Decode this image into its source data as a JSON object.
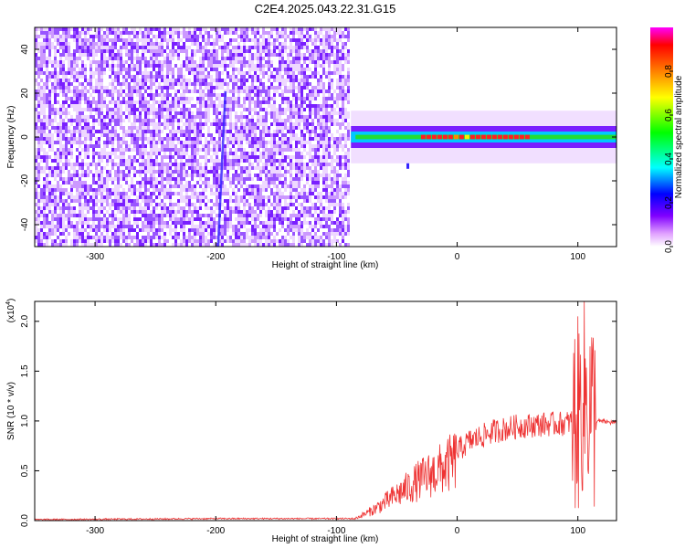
{
  "title": "C2E4.2025.043.22.31.G15",
  "chart_data": [
    {
      "type": "heatmap",
      "xlabel": "Height of straight line (km)",
      "ylabel": "Frequency (Hz)",
      "xlim": [
        -350,
        132
      ],
      "ylim": [
        -50,
        50
      ],
      "xticks": [
        -300,
        -200,
        -100,
        0,
        100
      ],
      "yticks": [
        -40,
        -20,
        0,
        20,
        40
      ],
      "noise_region_x": [
        -350,
        -88
      ],
      "signal_band": {
        "x_range": [
          -88,
          132
        ],
        "center_freq_hz": 0,
        "half_width_hz": [
          3,
          4
        ],
        "peak_amplitude_x_range": [
          -30,
          60
        ]
      },
      "colorbar": {
        "label": "Normalized spectral amplitude",
        "range": [
          0.0,
          1.0
        ],
        "ticks": [
          0.0,
          0.2,
          0.4,
          0.6,
          0.8
        ],
        "colors": [
          "#ffffff",
          "#e0a0ff",
          "#8000ff",
          "#0000ff",
          "#00ffff",
          "#00ff00",
          "#ffff00",
          "#ff8000",
          "#ff0000",
          "#ff00ff"
        ]
      }
    },
    {
      "type": "line",
      "xlabel": "Height of straight line (km)",
      "ylabel": "SNR (10 * v/v)",
      "scale_label_base": "(x10",
      "scale_label_exp": "4",
      "scale_label_close": ")",
      "xlim": [
        -350,
        132
      ],
      "ylim": [
        0,
        2.2
      ],
      "xticks": [
        -300,
        -200,
        -100,
        0,
        100
      ],
      "yticks": [
        0.0,
        0.5,
        1.0,
        1.5,
        2.0
      ],
      "yticklabels": [
        "0.0",
        "0.5",
        "1.0",
        "1.5",
        "2.0"
      ],
      "color": "#ee3333",
      "envelope": {
        "x": [
          -350,
          -200,
          -100,
          -85,
          -70,
          -50,
          -30,
          -10,
          0,
          10,
          30,
          50,
          70,
          90,
          100,
          105,
          110,
          115,
          132
        ],
        "y": [
          0.01,
          0.02,
          0.02,
          0.02,
          0.12,
          0.3,
          0.48,
          0.62,
          0.72,
          0.82,
          0.92,
          0.97,
          0.99,
          1.0,
          1.05,
          1.25,
          1.2,
          1.0,
          0.98
        ]
      }
    }
  ]
}
